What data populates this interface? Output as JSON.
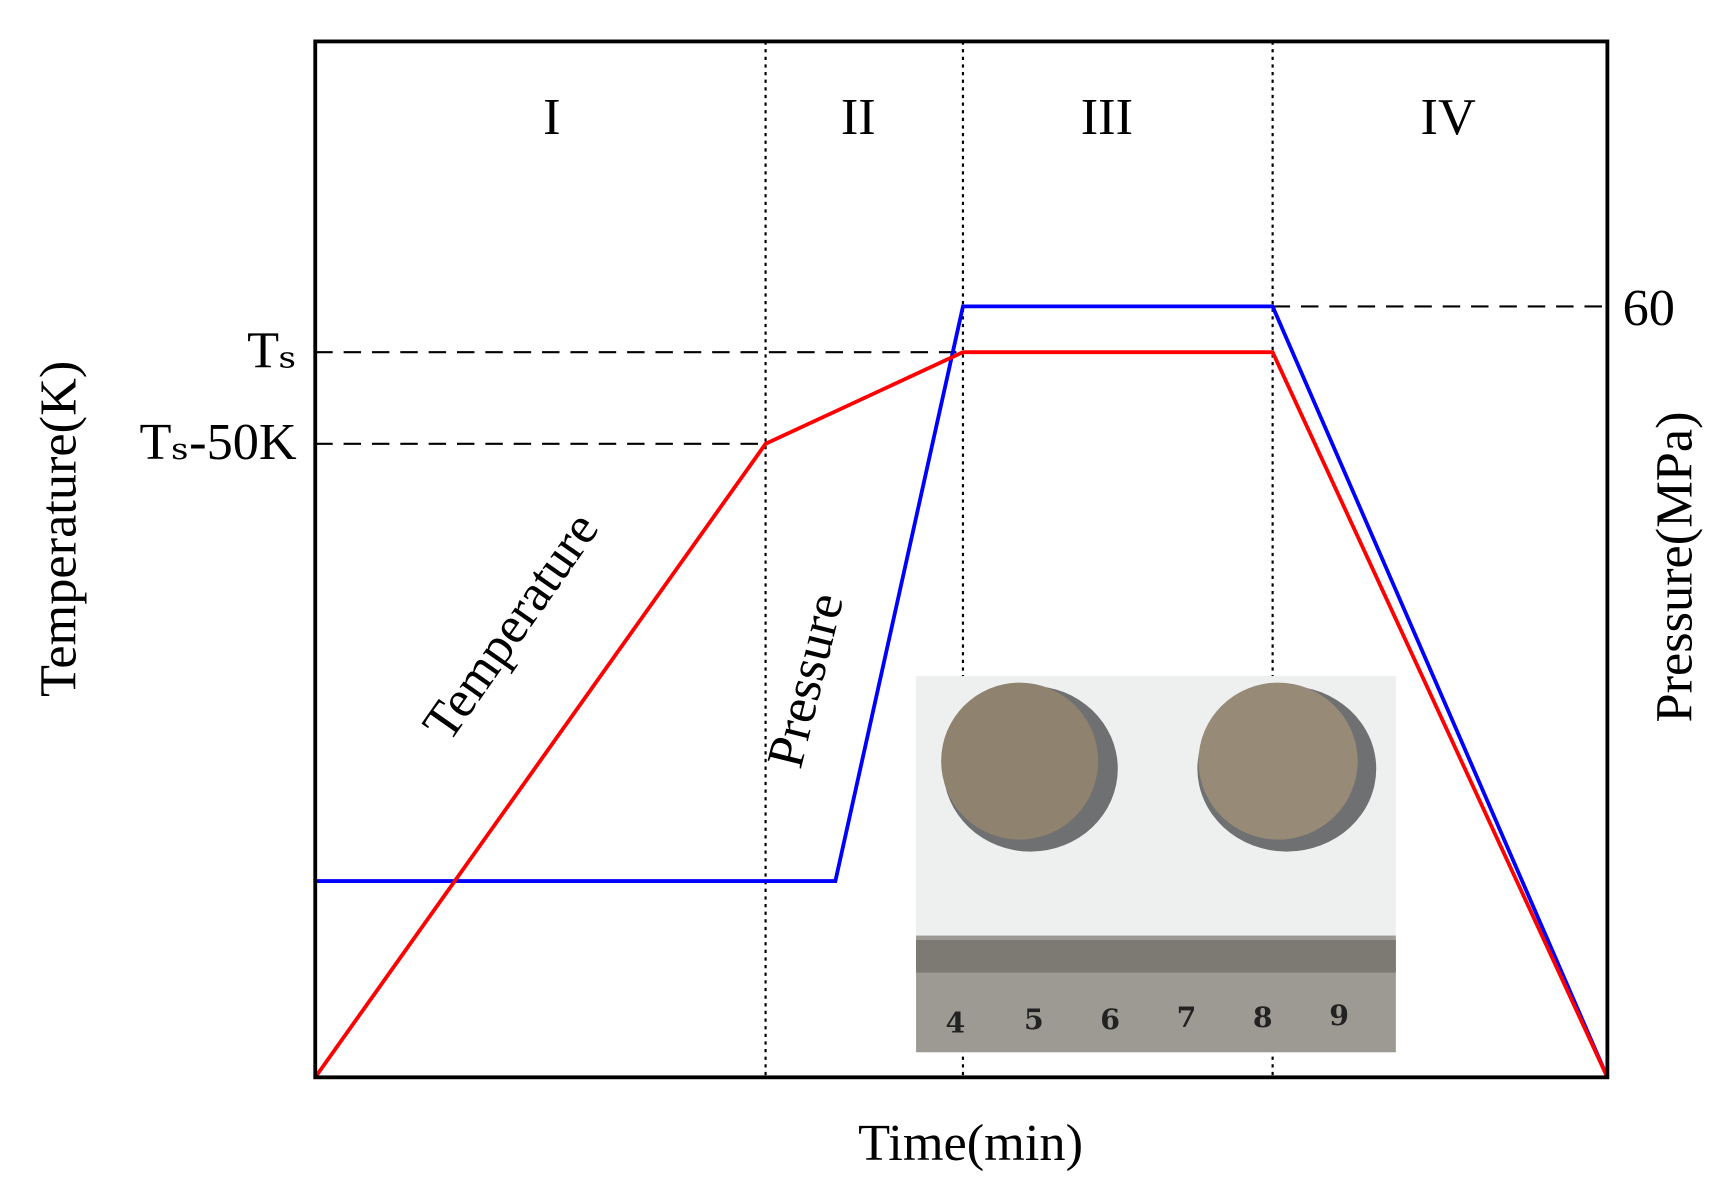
{
  "axes": {
    "x_label": "Time(min)",
    "y_label": "Temperature(K)",
    "y2_label": "Pressure(MPa)"
  },
  "stages": [
    "I",
    "II",
    "III",
    "IV"
  ],
  "temperature_ticks": [
    "Tₛ",
    "Tₛ-50K"
  ],
  "pressure_tick": "60",
  "curve_labels": {
    "temperature": "Temperature",
    "pressure": "Pressure"
  },
  "photo": {
    "ruler_labels": [
      "4",
      "5",
      "6",
      "7",
      "8",
      "9"
    ]
  }
}
